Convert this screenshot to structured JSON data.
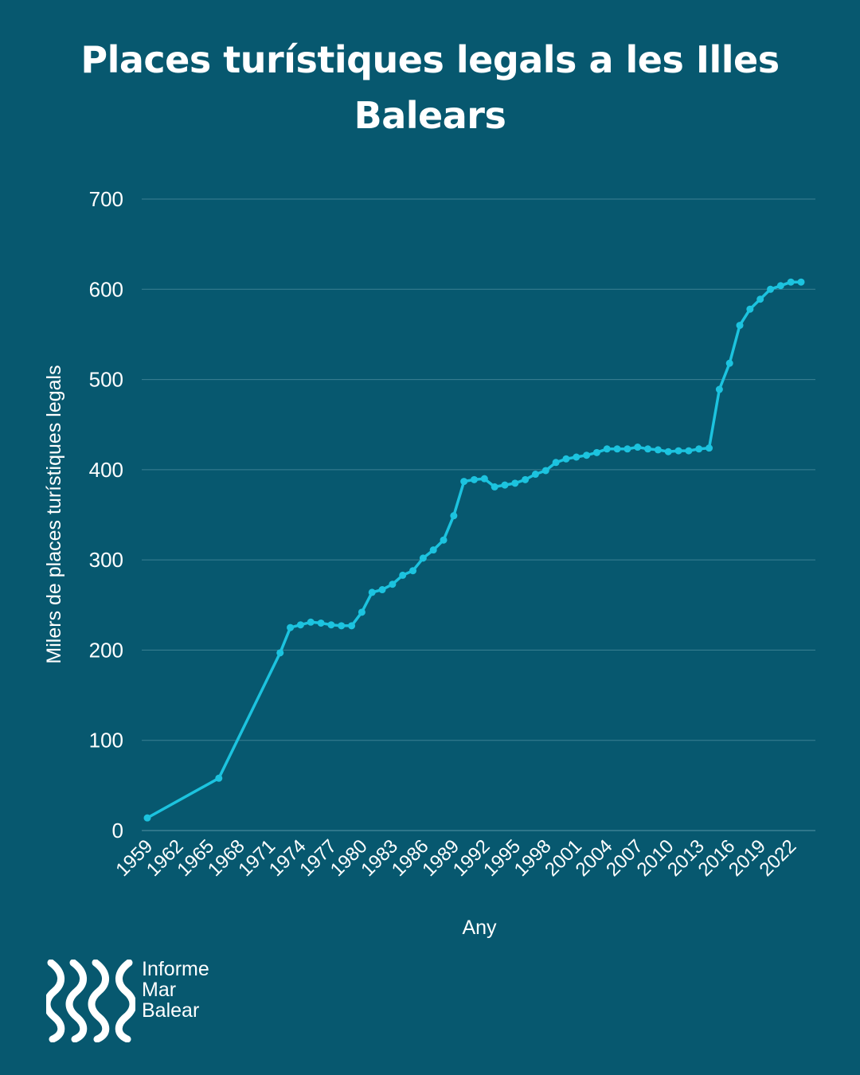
{
  "title": "Places turístiques legals a les Illes Balears",
  "brand": {
    "line1": "Informe",
    "line2": "Mar",
    "line3": "Balear"
  },
  "colors": {
    "background": "#07586f",
    "line": "#1cc3df",
    "grid": "#3c8093",
    "text": "#ffffff"
  },
  "chart_data": {
    "type": "line",
    "title": "Places turístiques legals a les Illes Balears",
    "xlabel": "Any",
    "ylabel": "Milers de places turístiques legals",
    "ylim": [
      0,
      700
    ],
    "yticks": [
      0,
      100,
      200,
      300,
      400,
      500,
      600,
      700
    ],
    "xticks": [
      "1959",
      "1962",
      "1965",
      "1968",
      "1971",
      "1974",
      "1977",
      "1980",
      "1983",
      "1986",
      "1989",
      "1992",
      "1995",
      "1998",
      "2001",
      "2004",
      "2007",
      "2010",
      "2013",
      "2016",
      "2019",
      "2022"
    ],
    "grid": true,
    "legend": "none",
    "x": [
      1959,
      1966,
      1972,
      1973,
      1974,
      1975,
      1976,
      1977,
      1978,
      1979,
      1980,
      1981,
      1982,
      1983,
      1984,
      1985,
      1986,
      1987,
      1988,
      1989,
      1990,
      1991,
      1992,
      1993,
      1994,
      1995,
      1996,
      1997,
      1998,
      1999,
      2000,
      2001,
      2002,
      2003,
      2004,
      2005,
      2006,
      2007,
      2008,
      2009,
      2010,
      2011,
      2012,
      2013,
      2014,
      2015,
      2016,
      2017,
      2018,
      2019,
      2020,
      2021,
      2022,
      2023
    ],
    "values": [
      14,
      58,
      197,
      225,
      228,
      231,
      230,
      228,
      227,
      227,
      242,
      264,
      267,
      273,
      283,
      288,
      302,
      311,
      322,
      349,
      387,
      389,
      390,
      381,
      383,
      385,
      389,
      395,
      399,
      408,
      412,
      414,
      416,
      419,
      423,
      423,
      423,
      425,
      423,
      422,
      420,
      421,
      421,
      423,
      424,
      489,
      518,
      560,
      578,
      589,
      600,
      604,
      608,
      608
    ]
  }
}
